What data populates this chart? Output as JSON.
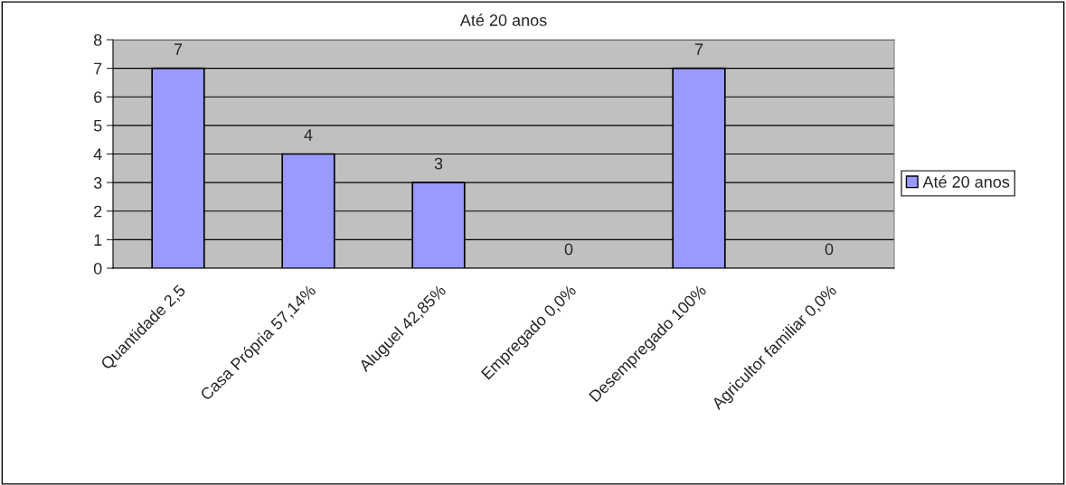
{
  "chart_data": {
    "type": "bar",
    "title": "Até 20 anos",
    "categories": [
      "Quantidade 2,5",
      "Casa Própria 57,14%",
      "Aluguel 42,85%",
      "Empregado 0,0%",
      "Desempregado 100%",
      "Agricultor familiar 0,0%"
    ],
    "series": [
      {
        "name": "Até 20 anos",
        "color": "#9999ff",
        "values": [
          7,
          4,
          3,
          0,
          7,
          0
        ]
      }
    ],
    "ylim": [
      0,
      8
    ],
    "yticks": [
      0,
      1,
      2,
      3,
      4,
      5,
      6,
      7,
      8
    ],
    "grid": "y",
    "legend": "right",
    "data_labels": true
  }
}
